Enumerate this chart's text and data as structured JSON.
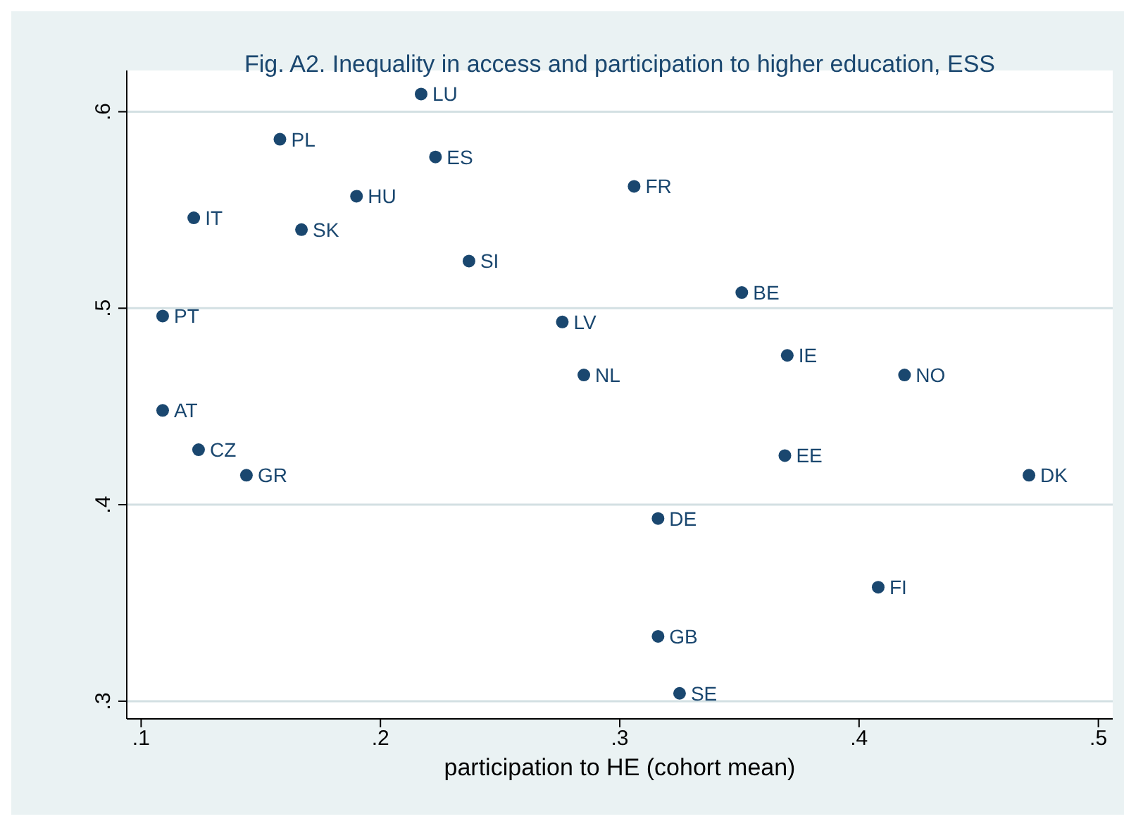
{
  "chart_data": {
    "type": "scatter",
    "title": "Fig. A2. Inequality in access and participation to higher education, ESS",
    "xlabel": "participation to HE (cohort mean)",
    "x": [
      0.217,
      0.158,
      0.223,
      0.19,
      0.122,
      0.167,
      0.237,
      0.306,
      0.351,
      0.109,
      0.276,
      0.37,
      0.285,
      0.419,
      0.109,
      0.124,
      0.369,
      0.144,
      0.471,
      0.316,
      0.408,
      0.316,
      0.325
    ],
    "values": [
      0.609,
      0.586,
      0.577,
      0.557,
      0.546,
      0.54,
      0.524,
      0.562,
      0.508,
      0.496,
      0.493,
      0.476,
      0.466,
      0.466,
      0.448,
      0.428,
      0.425,
      0.415,
      0.415,
      0.393,
      0.358,
      0.333,
      0.304
    ],
    "color": "#1a476f",
    "marker": "circle",
    "grid": "y",
    "legend": false,
    "xlim": [
      0.094,
      0.506
    ],
    "ylim": [
      0.291,
      0.621
    ],
    "xticks": [
      {
        "value": 0.1,
        "label": ".1"
      },
      {
        "value": 0.2,
        "label": ".2"
      },
      {
        "value": 0.3,
        "label": ".3"
      },
      {
        "value": 0.4,
        "label": ".4"
      },
      {
        "value": 0.5,
        "label": ".5"
      }
    ],
    "yticks": [
      {
        "value": 0.3,
        "label": ".3"
      },
      {
        "value": 0.4,
        "label": ".4"
      },
      {
        "value": 0.5,
        "label": ".5"
      },
      {
        "value": 0.6,
        "label": ".6"
      }
    ],
    "annotations": [
      {
        "text": "LU",
        "x": 0.217,
        "y": 0.609
      },
      {
        "text": "PL",
        "x": 0.158,
        "y": 0.586
      },
      {
        "text": "ES",
        "x": 0.223,
        "y": 0.577
      },
      {
        "text": "HU",
        "x": 0.19,
        "y": 0.557
      },
      {
        "text": "IT",
        "x": 0.122,
        "y": 0.546
      },
      {
        "text": "SK",
        "x": 0.167,
        "y": 0.54
      },
      {
        "text": "SI",
        "x": 0.237,
        "y": 0.524
      },
      {
        "text": "FR",
        "x": 0.306,
        "y": 0.562
      },
      {
        "text": "BE",
        "x": 0.351,
        "y": 0.508
      },
      {
        "text": "PT",
        "x": 0.109,
        "y": 0.496
      },
      {
        "text": "LV",
        "x": 0.276,
        "y": 0.493
      },
      {
        "text": "IE",
        "x": 0.37,
        "y": 0.476
      },
      {
        "text": "NL",
        "x": 0.285,
        "y": 0.466
      },
      {
        "text": "NO",
        "x": 0.419,
        "y": 0.466
      },
      {
        "text": "AT",
        "x": 0.109,
        "y": 0.448
      },
      {
        "text": "CZ",
        "x": 0.124,
        "y": 0.428
      },
      {
        "text": "EE",
        "x": 0.369,
        "y": 0.425
      },
      {
        "text": "GR",
        "x": 0.144,
        "y": 0.415
      },
      {
        "text": "DK",
        "x": 0.471,
        "y": 0.415
      },
      {
        "text": "DE",
        "x": 0.316,
        "y": 0.393
      },
      {
        "text": "FI",
        "x": 0.408,
        "y": 0.358
      },
      {
        "text": "GB",
        "x": 0.316,
        "y": 0.333
      },
      {
        "text": "SE",
        "x": 0.325,
        "y": 0.304
      }
    ]
  }
}
